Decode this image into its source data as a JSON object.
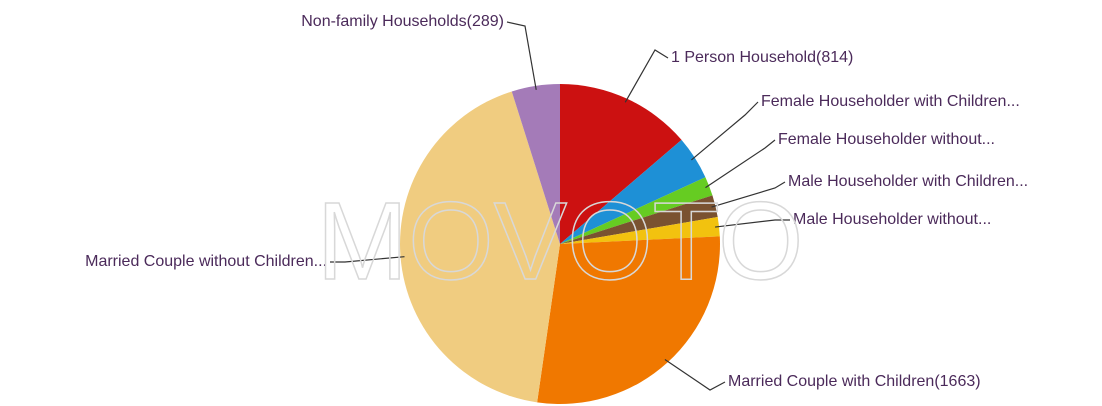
{
  "chart_data": {
    "type": "pie",
    "watermark": "MOVOTO",
    "categories": [
      "1 Person Household(814)",
      "Female Householder with Children...",
      "Female Householder without...",
      "Male Householder with Children...",
      "Male Householder without...",
      "Married Couple with Children(1663)",
      "Married Couple without Children...",
      "Non-family Households(289)"
    ],
    "values": [
      814,
      262,
      115,
      131,
      115,
      1663,
      2540,
      289
    ],
    "colors": [
      "#cc1111",
      "#1e90d6",
      "#66cc22",
      "#7a5230",
      "#f2c20f",
      "#f07800",
      "#f0cc80",
      "#a47bb8"
    ]
  }
}
